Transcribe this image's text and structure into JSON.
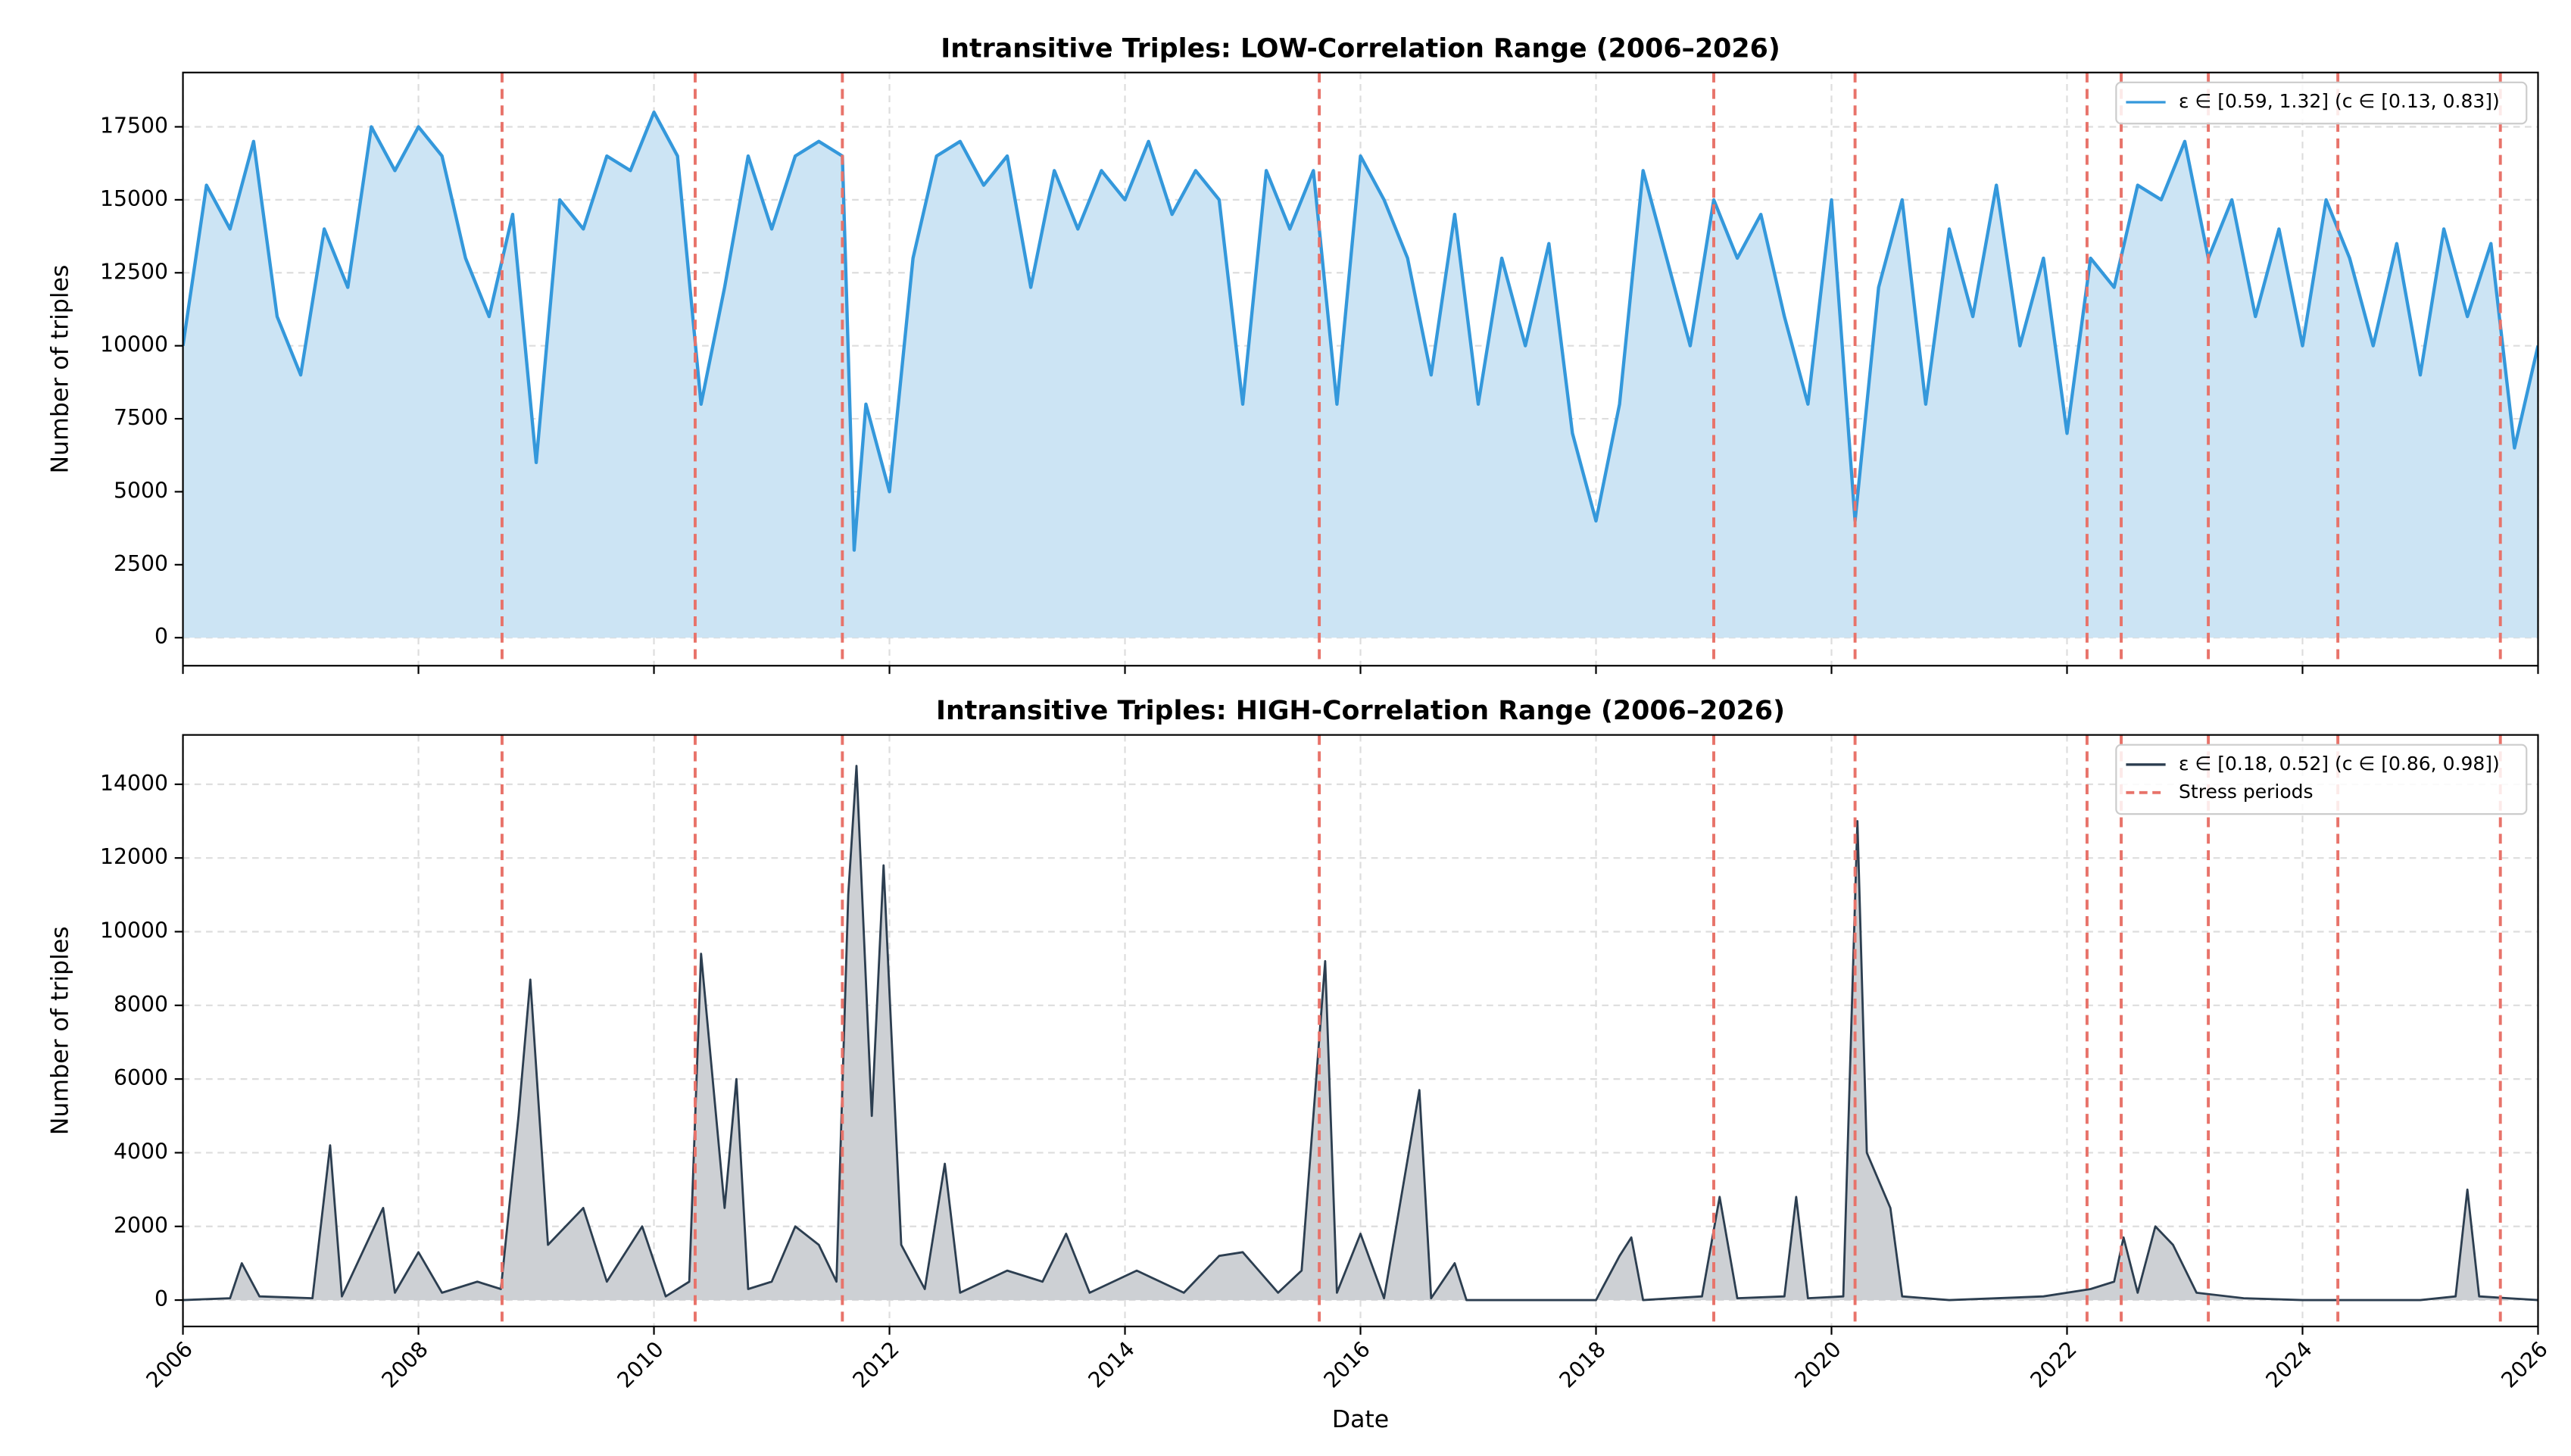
{
  "chart_data": [
    {
      "type": "line",
      "title": "Intransitive Triples: LOW-Correlation Range (2006–2026)",
      "ylabel": "Number of triples",
      "xlim": [
        2006,
        2026
      ],
      "xticks": [
        2006,
        2008,
        2010,
        2012,
        2014,
        2016,
        2018,
        2020,
        2022,
        2024,
        2026
      ],
      "ylim": [
        -960,
        19360
      ],
      "yticks": [
        0,
        2500,
        5000,
        7500,
        10000,
        12500,
        15000,
        17500
      ],
      "grid": true,
      "legend": "upper right",
      "series": [
        {
          "name": "ε ∈ [0.59, 1.32] (c ∈ [0.13, 0.83])",
          "color": "#3498db",
          "fill": "#cce4f4",
          "x": [
            2006.0,
            2006.2,
            2006.4,
            2006.6,
            2006.8,
            2007.0,
            2007.2,
            2007.4,
            2007.6,
            2007.8,
            2008.0,
            2008.2,
            2008.4,
            2008.6,
            2008.8,
            2009.0,
            2009.2,
            2009.4,
            2009.6,
            2009.8,
            2010.0,
            2010.2,
            2010.4,
            2010.6,
            2010.8,
            2011.0,
            2011.2,
            2011.4,
            2011.6,
            2011.7,
            2011.8,
            2012.0,
            2012.2,
            2012.4,
            2012.6,
            2012.8,
            2013.0,
            2013.2,
            2013.4,
            2013.6,
            2013.8,
            2014.0,
            2014.2,
            2014.4,
            2014.6,
            2014.8,
            2015.0,
            2015.2,
            2015.4,
            2015.6,
            2015.8,
            2016.0,
            2016.2,
            2016.4,
            2016.6,
            2016.8,
            2017.0,
            2017.2,
            2017.4,
            2017.6,
            2017.8,
            2018.0,
            2018.2,
            2018.4,
            2018.6,
            2018.8,
            2019.0,
            2019.2,
            2019.4,
            2019.6,
            2019.8,
            2020.0,
            2020.2,
            2020.4,
            2020.6,
            2020.8,
            2021.0,
            2021.2,
            2021.4,
            2021.6,
            2021.8,
            2022.0,
            2022.2,
            2022.4,
            2022.6,
            2022.8,
            2023.0,
            2023.2,
            2023.4,
            2023.6,
            2023.8,
            2024.0,
            2024.2,
            2024.4,
            2024.6,
            2024.8,
            2025.0,
            2025.2,
            2025.4,
            2025.6,
            2025.8,
            2026.0
          ],
          "values": [
            10000,
            15500,
            14000,
            17000,
            11000,
            9000,
            14000,
            12000,
            17500,
            16000,
            17500,
            16500,
            13000,
            11000,
            14500,
            6000,
            15000,
            14000,
            16500,
            16000,
            18000,
            16500,
            8000,
            12000,
            16500,
            14000,
            16500,
            17000,
            16500,
            3000,
            8000,
            5000,
            13000,
            16500,
            17000,
            15500,
            16500,
            12000,
            16000,
            14000,
            16000,
            15000,
            17000,
            14500,
            16000,
            15000,
            8000,
            16000,
            14000,
            16000,
            8000,
            16500,
            15000,
            13000,
            9000,
            14500,
            8000,
            13000,
            10000,
            13500,
            7000,
            4000,
            8000,
            16000,
            13000,
            10000,
            15000,
            13000,
            14500,
            11000,
            8000,
            15000,
            4000,
            12000,
            15000,
            8000,
            14000,
            11000,
            15500,
            10000,
            13000,
            7000,
            13000,
            12000,
            15500,
            15000,
            17000,
            13000,
            15000,
            11000,
            14000,
            10000,
            15000,
            13000,
            10000,
            13500,
            9000,
            14000,
            11000,
            13500,
            6500,
            10000
          ]
        }
      ]
    },
    {
      "type": "line",
      "title": "Intransitive Triples: HIGH-Correlation Range (2006–2026)",
      "ylabel": "Number of triples",
      "xlabel": "Date",
      "xlim": [
        2006,
        2026
      ],
      "xticks": [
        2006,
        2008,
        2010,
        2012,
        2014,
        2016,
        2018,
        2020,
        2022,
        2024,
        2026
      ],
      "ylim": [
        -716,
        15340
      ],
      "yticks": [
        0,
        2000,
        4000,
        6000,
        8000,
        10000,
        12000,
        14000
      ],
      "grid": true,
      "legend": "upper right",
      "series": [
        {
          "name": "ε ∈ [0.18, 0.52] (c ∈ [0.86, 0.98])",
          "color": "#2c3e50",
          "fill": "#cdd0d4",
          "x": [
            2006,
            2006.4,
            2006.5,
            2006.65,
            2007.1,
            2007.25,
            2007.35,
            2007.7,
            2007.8,
            2008.0,
            2008.2,
            2008.5,
            2008.7,
            2008.85,
            2008.95,
            2009.1,
            2009.4,
            2009.6,
            2009.9,
            2010.1,
            2010.3,
            2010.4,
            2010.6,
            2010.7,
            2010.8,
            2011.0,
            2011.2,
            2011.4,
            2011.55,
            2011.65,
            2011.72,
            2011.85,
            2011.95,
            2012.1,
            2012.3,
            2012.47,
            2012.6,
            2013.0,
            2013.3,
            2013.5,
            2013.7,
            2014.1,
            2014.5,
            2014.8,
            2015.0,
            2015.3,
            2015.5,
            2015.7,
            2015.8,
            2016.0,
            2016.2,
            2016.5,
            2016.6,
            2016.8,
            2016.9,
            2017.5,
            2018.0,
            2018.2,
            2018.3,
            2018.4,
            2018.9,
            2019.05,
            2019.2,
            2019.6,
            2019.7,
            2019.8,
            2020.1,
            2020.22,
            2020.3,
            2020.5,
            2020.6,
            2021.0,
            2021.8,
            2022.2,
            2022.4,
            2022.48,
            2022.6,
            2022.75,
            2022.9,
            2023.1,
            2023.5,
            2024.0,
            2025.0,
            2025.3,
            2025.4,
            2025.5,
            2026.0
          ],
          "values": [
            0,
            50,
            1000,
            100,
            50,
            4200,
            100,
            2500,
            200,
            1300,
            200,
            500,
            300,
            5000,
            8700,
            1500,
            2500,
            500,
            2000,
            100,
            500,
            9400,
            2500,
            6000,
            300,
            500,
            2000,
            1500,
            500,
            11000,
            14500,
            5000,
            11800,
            1500,
            300,
            3700,
            200,
            800,
            500,
            1800,
            200,
            800,
            200,
            1200,
            1300,
            200,
            800,
            9200,
            200,
            1800,
            50,
            5700,
            50,
            1000,
            0,
            0,
            0,
            1200,
            1700,
            0,
            100,
            2800,
            50,
            100,
            2800,
            50,
            100,
            13000,
            4000,
            2500,
            100,
            0,
            100,
            300,
            500,
            1700,
            200,
            2000,
            1500,
            200,
            50,
            0,
            0,
            100,
            3000,
            100,
            0
          ]
        }
      ],
      "stress": {
        "name": "Stress periods",
        "color": "#e8736a",
        "x": [
          2008.71,
          2010.35,
          2011.6,
          2015.65,
          2019.0,
          2020.2,
          2022.17,
          2022.46,
          2023.2,
          2024.3,
          2025.68
        ]
      }
    }
  ]
}
